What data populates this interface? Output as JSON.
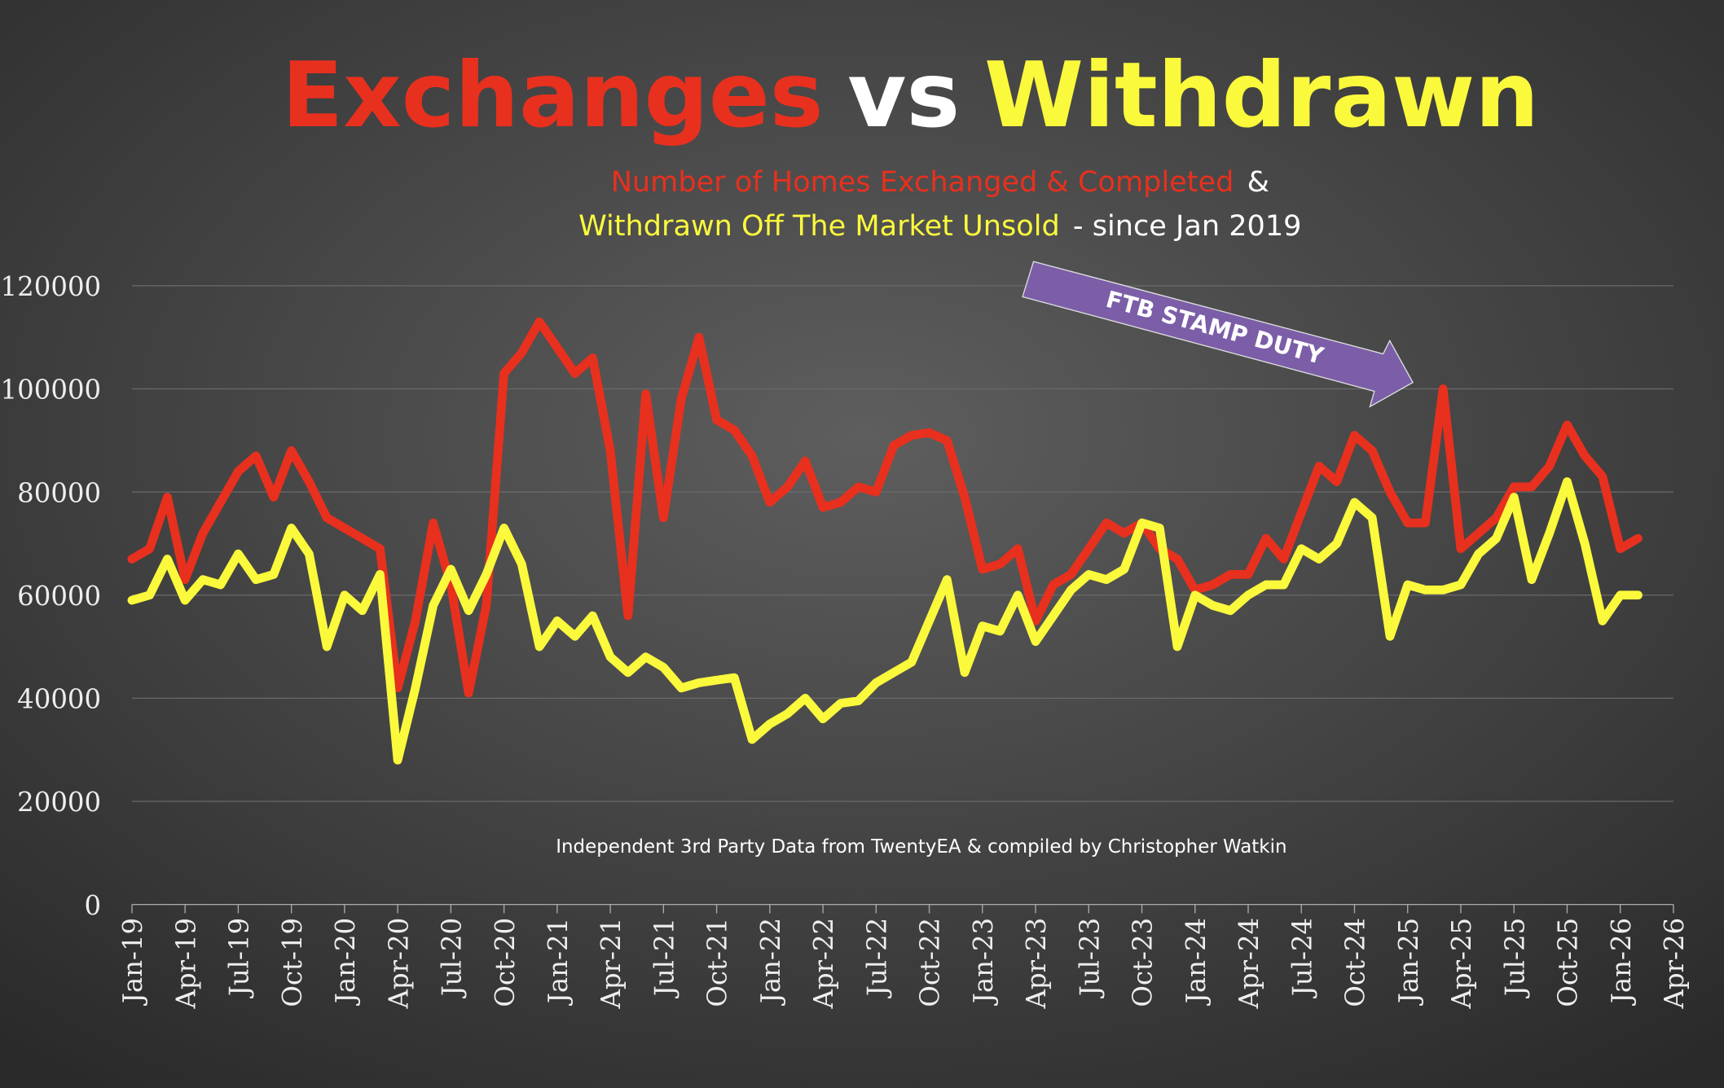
{
  "chart_data": {
    "type": "line",
    "title": [
      {
        "text": "Exchanges",
        "color": "#e8301e"
      },
      {
        "text": "vs",
        "color": "#ffffff"
      },
      {
        "text": "Withdrawn",
        "color": "#fbf93c"
      }
    ],
    "subtitle": [
      [
        {
          "text": "Number of Homes Exchanged & Completed",
          "color": "#e8301e"
        },
        {
          "text": "&",
          "color": "#ffffff"
        }
      ],
      [
        {
          "text": "Withdrawn Off The Market Unsold",
          "color": "#fbf93c"
        },
        {
          "text": "- since Jan 2019",
          "color": "#ffffff"
        }
      ]
    ],
    "annotation": "FTB STAMP DUTY",
    "source": "Independent 3rd Party Data from TwentyEA  & compiled by Christopher Watkin",
    "x": [
      "Jan-19",
      "Feb-19",
      "Mar-19",
      "Apr-19",
      "May-19",
      "Jun-19",
      "Jul-19",
      "Aug-19",
      "Sep-19",
      "Oct-19",
      "Nov-19",
      "Dec-19",
      "Jan-20",
      "Feb-20",
      "Mar-20",
      "Apr-20",
      "May-20",
      "Jun-20",
      "Jul-20",
      "Aug-20",
      "Sep-20",
      "Oct-20",
      "Nov-20",
      "Dec-20",
      "Jan-21",
      "Feb-21",
      "Mar-21",
      "Apr-21",
      "May-21",
      "Jun-21",
      "Jul-21",
      "Aug-21",
      "Sep-21",
      "Oct-21",
      "Nov-21",
      "Dec-21",
      "Jan-22",
      "Feb-22",
      "Mar-22",
      "Apr-22",
      "May-22",
      "Jun-22",
      "Jul-22",
      "Aug-22",
      "Sep-22",
      "Oct-22",
      "Nov-22",
      "Dec-22",
      "Jan-23",
      "Feb-23",
      "Mar-23",
      "Apr-23",
      "May-23",
      "Jun-23",
      "Jul-23",
      "Aug-23",
      "Sep-23",
      "Oct-23",
      "Nov-23",
      "Dec-23",
      "Jan-24",
      "Feb-24",
      "Mar-24",
      "Apr-24",
      "May-24",
      "Jun-24",
      "Jul-24",
      "Aug-24",
      "Sep-24",
      "Oct-24",
      "Nov-24",
      "Dec-24",
      "Jan-25",
      "Feb-25",
      "Mar-25",
      "Apr-25",
      "May-25",
      "Jun-25",
      "Jul-25",
      "Aug-25",
      "Sep-25",
      "Oct-25",
      "Nov-25",
      "Dec-25",
      "Jan-26",
      "Feb-26"
    ],
    "series": [
      {
        "name": "Exchanges",
        "color": "#e8301e",
        "values": [
          67000,
          69000,
          79000,
          63000,
          72000,
          78000,
          84000,
          87000,
          79000,
          88000,
          82000,
          75000,
          73000,
          71000,
          69000,
          42000,
          55000,
          74000,
          62000,
          41000,
          58000,
          103000,
          107000,
          113000,
          108000,
          103000,
          106000,
          88000,
          56000,
          99000,
          75000,
          98000,
          110000,
          94000,
          92000,
          87000,
          78000,
          81000,
          86000,
          77000,
          78000,
          81000,
          80000,
          89000,
          91000,
          91500,
          90000,
          79000,
          65000,
          66000,
          69000,
          55000,
          62000,
          64000,
          69000,
          74000,
          72000,
          74000,
          69000,
          67000,
          61000,
          62000,
          64000,
          64000,
          71000,
          67000,
          76000,
          85000,
          82000,
          91000,
          88000,
          80000,
          74000,
          74000,
          100000,
          69000,
          72000,
          75000,
          81000,
          81000,
          85000,
          93000,
          87000,
          83000,
          69000,
          71000
        ]
      },
      {
        "name": "Withdrawn",
        "color": "#fbf93c",
        "values": [
          59000,
          60000,
          67000,
          59000,
          63000,
          62000,
          68000,
          63000,
          64000,
          73000,
          68000,
          50000,
          60000,
          57000,
          64000,
          28000,
          42000,
          58000,
          65000,
          57000,
          64000,
          73000,
          66000,
          50000,
          55000,
          52000,
          56000,
          48000,
          45000,
          48000,
          46000,
          42000,
          43000,
          43500,
          44000,
          32000,
          35000,
          37000,
          40000,
          36000,
          39000,
          39500,
          43000,
          45000,
          47000,
          55000,
          63000,
          45000,
          54000,
          53000,
          60000,
          51000,
          56000,
          61000,
          64000,
          63000,
          65000,
          74000,
          73000,
          50000,
          60000,
          58000,
          57000,
          60000,
          62000,
          62000,
          69000,
          67000,
          70000,
          78000,
          75000,
          52000,
          62000,
          61000,
          61000,
          62000,
          68000,
          71000,
          79000,
          63000,
          72000,
          82000,
          70000,
          55000,
          60000,
          60000
        ]
      }
    ],
    "xlim": [
      "Jan-19",
      "Apr-26"
    ],
    "xticks": [
      "Jan-19",
      "Apr-19",
      "Jul-19",
      "Oct-19",
      "Jan-20",
      "Apr-20",
      "Jul-20",
      "Oct-20",
      "Jan-21",
      "Apr-21",
      "Jul-21",
      "Oct-21",
      "Jan-22",
      "Apr-22",
      "Jul-22",
      "Oct-22",
      "Jan-23",
      "Apr-23",
      "Jul-23",
      "Oct-23",
      "Jan-24",
      "Apr-24",
      "Jul-24",
      "Oct-24",
      "Jan-25",
      "Apr-25",
      "Jul-25",
      "Oct-25",
      "Jan-26",
      "Apr-26"
    ],
    "ylim": [
      0,
      120000
    ],
    "yticks": [
      0,
      20000,
      40000,
      60000,
      80000,
      100000,
      120000
    ],
    "grid": true
  }
}
